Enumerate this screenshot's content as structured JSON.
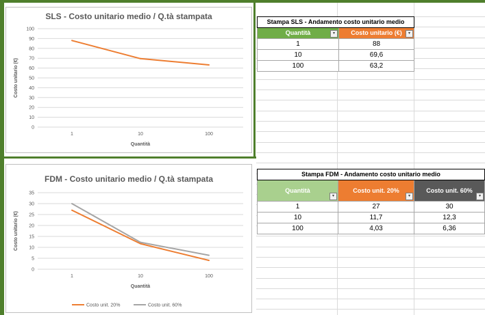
{
  "sls": {
    "chart_data": {
      "type": "line",
      "title": "SLS - Costo unitario medio / Q.tà stampata",
      "xlabel": "Quantità",
      "ylabel": "Costo unitario (€)",
      "categories": [
        "1",
        "10",
        "100"
      ],
      "series": [
        {
          "values": [
            88,
            69.6,
            63.2
          ],
          "color": "#ed7d31"
        }
      ],
      "ylim": [
        0,
        100
      ],
      "yticks": [
        "0",
        "10",
        "20",
        "30",
        "40",
        "50",
        "60",
        "70",
        "80",
        "90",
        "100"
      ],
      "grid": true
    },
    "table": {
      "title": "Stampa SLS - Andamento costo unitario medio",
      "headers": [
        "Quantità",
        "Costo unitario (€)"
      ],
      "rows": [
        [
          "1",
          "88"
        ],
        [
          "10",
          "69,6"
        ],
        [
          "100",
          "63,2"
        ]
      ],
      "header_colors": [
        "#70ad47",
        "#ed7d31"
      ]
    }
  },
  "fdm": {
    "chart_data": {
      "type": "line",
      "title": "FDM - Costo unitario medio / Q.tà stampata",
      "xlabel": "Quantità",
      "ylabel": "Costo unitario (€)",
      "categories": [
        "1",
        "10",
        "100"
      ],
      "series": [
        {
          "name": "Costo unit. 20%",
          "values": [
            27,
            11.7,
            4.03
          ],
          "color": "#ed7d31"
        },
        {
          "name": "Costo unit. 60%",
          "values": [
            30,
            12.3,
            6.36
          ],
          "color": "#a5a5a5"
        }
      ],
      "ylim": [
        0,
        35
      ],
      "yticks": [
        "0",
        "5",
        "10",
        "15",
        "20",
        "25",
        "30",
        "35"
      ],
      "legend": "bottom",
      "grid": true
    },
    "table": {
      "title": "Stampa FDM - Andamento costo unitario medio",
      "headers": [
        "Quantità",
        "Costo unit. 20%",
        "Costo unit. 60%"
      ],
      "rows": [
        [
          "1",
          "27",
          "30"
        ],
        [
          "10",
          "11,7",
          "12,3"
        ],
        [
          "100",
          "4,03",
          "6,36"
        ]
      ],
      "header_colors": [
        "#a9d08e",
        "#ed7d31",
        "#595959"
      ]
    }
  },
  "icons": {
    "dropdown": "filter-dropdown-icon"
  }
}
